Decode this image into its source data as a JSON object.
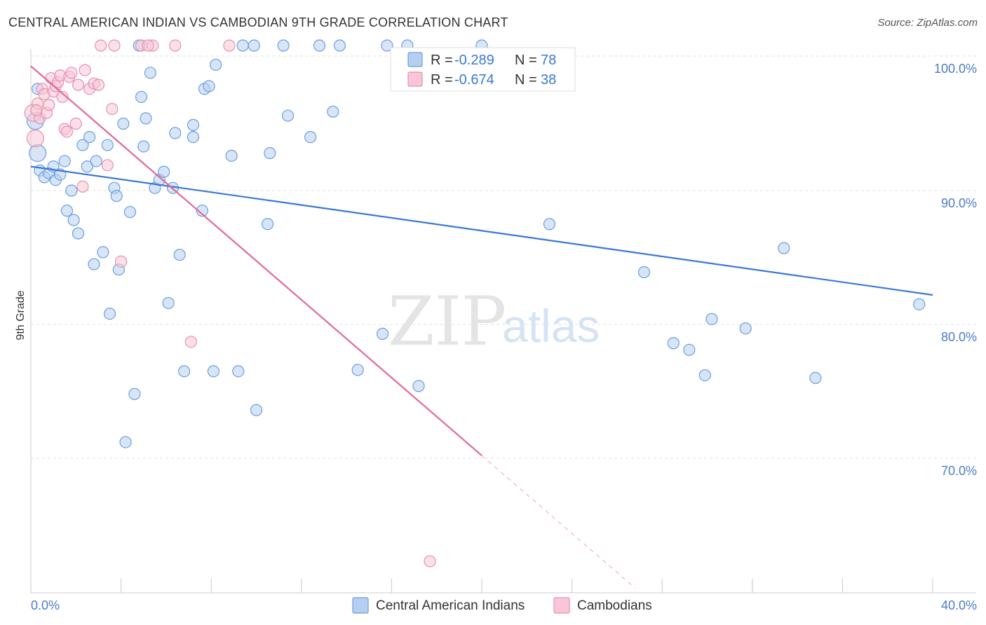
{
  "title": "CENTRAL AMERICAN INDIAN VS CAMBODIAN 9TH GRADE CORRELATION CHART",
  "source": "Source: ZipAtlas.com",
  "watermark": {
    "part1": "ZIP",
    "part2": "atlas"
  },
  "chart_data": {
    "type": "scatter",
    "ylabel": "9th Grade",
    "xlim": [
      0,
      40
    ],
    "ylim": [
      60.5,
      101.5
    ],
    "x_tick_labels": [
      "0.0%",
      "40.0%"
    ],
    "y_ticks": [
      {
        "value": 100,
        "label": "100.0%"
      },
      {
        "value": 90,
        "label": "90.0%"
      },
      {
        "value": 80,
        "label": "80.0%"
      },
      {
        "value": 70,
        "label": "70.0%"
      }
    ],
    "grid": true,
    "legend": [
      {
        "r_label": "R =",
        "r_value": "-0.289",
        "n_label": "N =",
        "n_value": "78"
      },
      {
        "r_label": "R =",
        "r_value": "-0.674",
        "n_label": "N =",
        "n_value": "38"
      }
    ],
    "series": [
      {
        "name": "Central American Indians",
        "color": "#6a9fe0",
        "fill": "#b6cff0",
        "trend": {
          "x0": 0,
          "y0": 91.8,
          "x1": 40,
          "y1": 82.2,
          "color": "#3a78d4"
        },
        "points": [
          [
            0.2,
            95.2
          ],
          [
            0.3,
            92.8
          ],
          [
            0.4,
            91.5
          ],
          [
            0.6,
            91.0
          ],
          [
            0.8,
            91.3
          ],
          [
            1.0,
            91.8
          ],
          [
            1.1,
            90.8
          ],
          [
            1.3,
            91.2
          ],
          [
            1.5,
            92.2
          ],
          [
            1.6,
            88.5
          ],
          [
            1.8,
            90.0
          ],
          [
            1.9,
            87.8
          ],
          [
            2.1,
            86.8
          ],
          [
            2.3,
            93.4
          ],
          [
            2.5,
            91.8
          ],
          [
            2.6,
            94.0
          ],
          [
            2.8,
            84.5
          ],
          [
            2.9,
            92.2
          ],
          [
            3.2,
            85.4
          ],
          [
            3.4,
            93.4
          ],
          [
            3.5,
            80.8
          ],
          [
            3.7,
            90.2
          ],
          [
            3.8,
            89.6
          ],
          [
            3.9,
            84.1
          ],
          [
            4.1,
            95.0
          ],
          [
            4.2,
            71.2
          ],
          [
            4.4,
            88.4
          ],
          [
            4.6,
            74.8
          ],
          [
            4.9,
            97.0
          ],
          [
            5.0,
            93.3
          ],
          [
            5.1,
            95.4
          ],
          [
            5.3,
            98.8
          ],
          [
            5.5,
            90.2
          ],
          [
            5.7,
            90.8
          ],
          [
            5.9,
            91.4
          ],
          [
            6.1,
            81.6
          ],
          [
            6.3,
            90.2
          ],
          [
            6.4,
            94.3
          ],
          [
            6.6,
            85.2
          ],
          [
            6.8,
            76.5
          ],
          [
            7.2,
            94.0
          ],
          [
            7.2,
            94.9
          ],
          [
            7.6,
            88.5
          ],
          [
            7.7,
            97.6
          ],
          [
            7.9,
            97.8
          ],
          [
            8.2,
            99.4
          ],
          [
            8.1,
            76.5
          ],
          [
            8.9,
            92.6
          ],
          [
            9.2,
            76.5
          ],
          [
            9.4,
            100.0
          ],
          [
            9.9,
            100.0
          ],
          [
            10.0,
            73.6
          ],
          [
            10.5,
            87.5
          ],
          [
            10.6,
            92.8
          ],
          [
            11.2,
            100.0
          ],
          [
            11.4,
            95.6
          ],
          [
            12.4,
            94.0
          ],
          [
            12.8,
            100.0
          ],
          [
            13.4,
            95.9
          ],
          [
            13.7,
            100.0
          ],
          [
            14.5,
            76.6
          ],
          [
            15.6,
            79.3
          ],
          [
            15.8,
            100.0
          ],
          [
            16.7,
            100.0
          ],
          [
            17.2,
            75.4
          ],
          [
            23.0,
            87.5
          ],
          [
            27.2,
            83.9
          ],
          [
            28.5,
            78.6
          ],
          [
            29.2,
            78.1
          ],
          [
            29.9,
            76.2
          ],
          [
            30.2,
            80.4
          ],
          [
            31.7,
            79.7
          ],
          [
            33.4,
            85.7
          ],
          [
            34.8,
            76.0
          ],
          [
            39.4,
            81.5
          ],
          [
            0.3,
            97.6
          ],
          [
            4.8,
            100.0
          ],
          [
            20.0,
            100.0
          ]
        ]
      },
      {
        "name": "Cambodians",
        "color": "#e890ae",
        "fill": "#f8c6d6",
        "trend": {
          "x0": 0,
          "y0": 99.3,
          "x1": 20.0,
          "y1": 70.2,
          "dash_to_x": 26.8,
          "color": "#e2689a"
        },
        "points": [
          [
            0.1,
            95.8
          ],
          [
            0.2,
            93.9
          ],
          [
            0.3,
            96.5
          ],
          [
            0.4,
            95.4
          ],
          [
            0.5,
            97.6
          ],
          [
            0.6,
            97.2
          ],
          [
            0.7,
            95.8
          ],
          [
            0.8,
            96.4
          ],
          [
            0.9,
            98.4
          ],
          [
            1.0,
            97.4
          ],
          [
            1.1,
            97.8
          ],
          [
            1.2,
            98.1
          ],
          [
            1.3,
            98.6
          ],
          [
            1.4,
            97.0
          ],
          [
            1.5,
            94.6
          ],
          [
            1.6,
            94.4
          ],
          [
            1.7,
            98.5
          ],
          [
            1.8,
            98.8
          ],
          [
            2.0,
            95.0
          ],
          [
            2.1,
            97.9
          ],
          [
            2.3,
            90.3
          ],
          [
            2.4,
            99.0
          ],
          [
            2.6,
            97.6
          ],
          [
            2.8,
            98.0
          ],
          [
            3.0,
            97.9
          ],
          [
            3.1,
            100.0
          ],
          [
            3.4,
            91.9
          ],
          [
            3.6,
            96.1
          ],
          [
            3.7,
            100.0
          ],
          [
            4.0,
            84.7
          ],
          [
            4.9,
            100.0
          ],
          [
            5.4,
            100.0
          ],
          [
            6.4,
            100.0
          ],
          [
            7.1,
            78.7
          ],
          [
            8.8,
            100.0
          ],
          [
            17.7,
            62.3
          ],
          [
            0.25,
            96.0
          ],
          [
            5.2,
            100.0
          ]
        ]
      }
    ]
  }
}
